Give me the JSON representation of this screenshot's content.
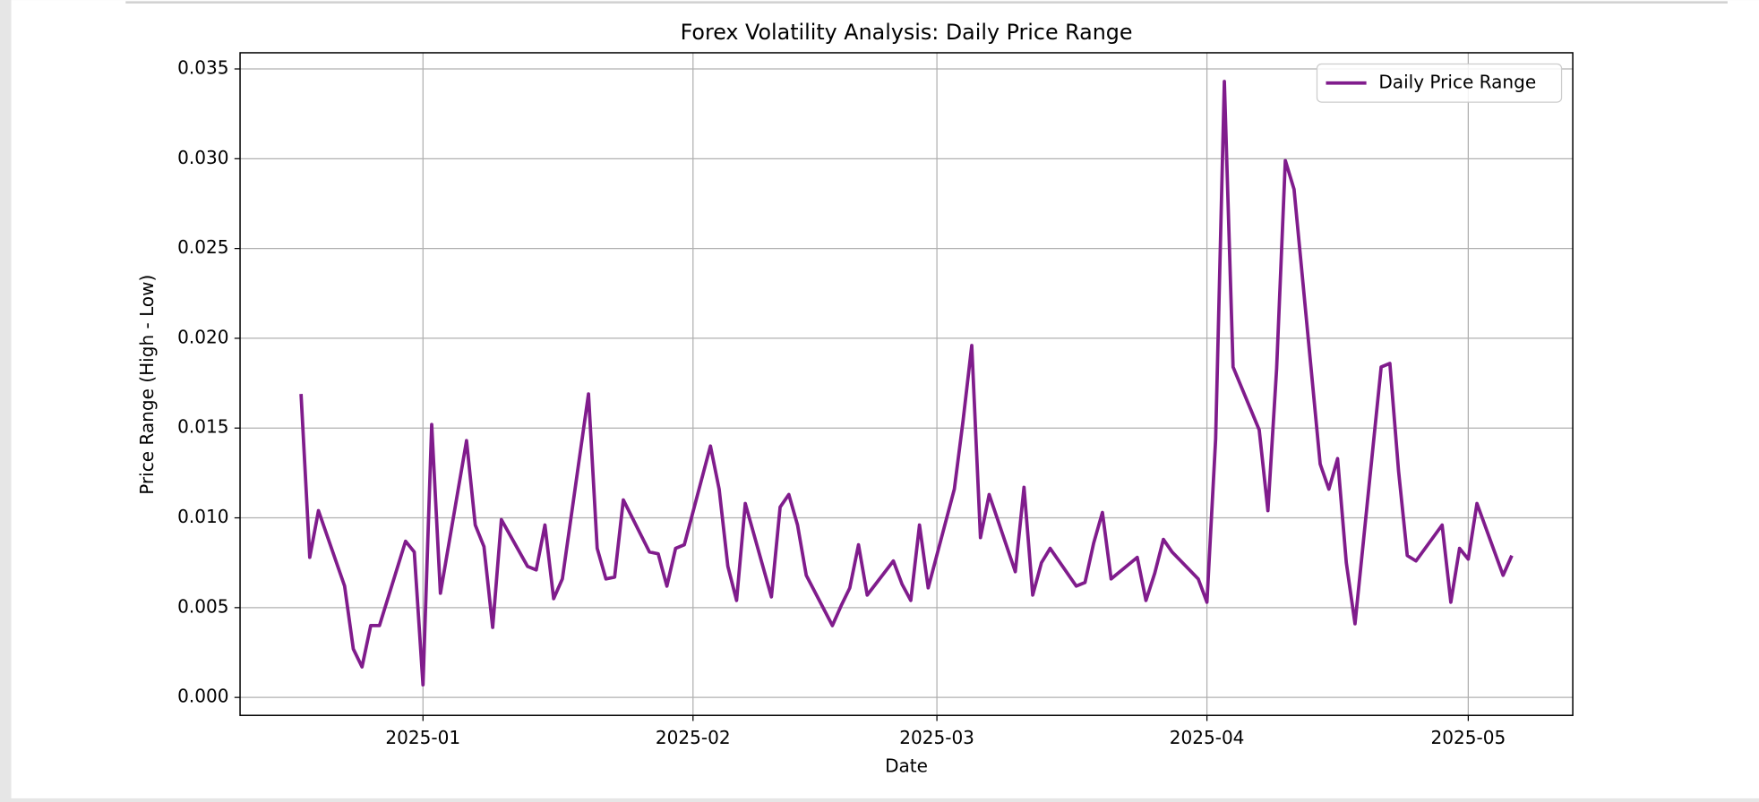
{
  "chart_data": {
    "type": "line",
    "title": "Forex Volatility Analysis: Daily Price Range",
    "x_label": "Date",
    "y_label": "Price Range (High - Low)",
    "x": [
      "2024-12-18",
      "2024-12-19",
      "2024-12-20",
      "2024-12-23",
      "2024-12-24",
      "2024-12-25",
      "2024-12-26",
      "2024-12-27",
      "2024-12-30",
      "2024-12-31",
      "2025-01-01",
      "2025-01-02",
      "2025-01-03",
      "2025-01-06",
      "2025-01-07",
      "2025-01-08",
      "2025-01-09",
      "2025-01-10",
      "2025-01-13",
      "2025-01-14",
      "2025-01-15",
      "2025-01-16",
      "2025-01-17",
      "2025-01-20",
      "2025-01-21",
      "2025-01-22",
      "2025-01-23",
      "2025-01-24",
      "2025-01-27",
      "2025-01-28",
      "2025-01-29",
      "2025-01-30",
      "2025-01-31",
      "2025-02-03",
      "2025-02-04",
      "2025-02-05",
      "2025-02-06",
      "2025-02-07",
      "2025-02-10",
      "2025-02-11",
      "2025-02-12",
      "2025-02-13",
      "2025-02-14",
      "2025-02-17",
      "2025-02-18",
      "2025-02-19",
      "2025-02-20",
      "2025-02-21",
      "2025-02-24",
      "2025-02-25",
      "2025-02-26",
      "2025-02-27",
      "2025-02-28",
      "2025-03-03",
      "2025-03-04",
      "2025-03-05",
      "2025-03-06",
      "2025-03-07",
      "2025-03-10",
      "2025-03-11",
      "2025-03-12",
      "2025-03-13",
      "2025-03-14",
      "2025-03-17",
      "2025-03-18",
      "2025-03-19",
      "2025-03-20",
      "2025-03-21",
      "2025-03-24",
      "2025-03-25",
      "2025-03-26",
      "2025-03-27",
      "2025-03-28",
      "2025-03-31",
      "2025-04-01",
      "2025-04-02",
      "2025-04-03",
      "2025-04-04",
      "2025-04-07",
      "2025-04-08",
      "2025-04-09",
      "2025-04-10",
      "2025-04-11",
      "2025-04-14",
      "2025-04-15",
      "2025-04-16",
      "2025-04-17",
      "2025-04-18",
      "2025-04-21",
      "2025-04-22",
      "2025-04-23",
      "2025-04-24",
      "2025-04-25",
      "2025-04-28",
      "2025-04-29",
      "2025-04-30",
      "2025-05-01",
      "2025-05-02",
      "2025-05-05",
      "2025-05-06"
    ],
    "series": [
      {
        "name": "Daily Price Range",
        "color": "#801c8c",
        "values": [
          0.0169,
          0.0078,
          0.0104,
          0.0062,
          0.0027,
          0.0017,
          0.004,
          0.004,
          0.0087,
          0.0081,
          0.0007,
          0.0152,
          0.0058,
          0.0143,
          0.0096,
          0.0084,
          0.0039,
          0.0099,
          0.0073,
          0.0071,
          0.0096,
          0.0055,
          0.0066,
          0.0169,
          0.0083,
          0.0066,
          0.0067,
          0.011,
          0.0081,
          0.008,
          0.0062,
          0.0083,
          0.0085,
          0.014,
          0.0116,
          0.0073,
          0.0054,
          0.0108,
          0.0056,
          0.0106,
          0.0113,
          0.0096,
          0.0068,
          0.004,
          0.0051,
          0.0061,
          0.0085,
          0.0057,
          0.0076,
          0.0063,
          0.0054,
          0.0096,
          0.0061,
          0.0116,
          0.0154,
          0.0196,
          0.0089,
          0.0113,
          0.007,
          0.0117,
          0.0057,
          0.0075,
          0.0083,
          0.0062,
          0.0064,
          0.0086,
          0.0103,
          0.0066,
          0.0078,
          0.0054,
          0.0069,
          0.0088,
          0.0081,
          0.0066,
          0.0053,
          0.0144,
          0.0343,
          0.0184,
          0.0149,
          0.0104,
          0.0183,
          0.0299,
          0.0283,
          0.013,
          0.0116,
          0.0133,
          0.0075,
          0.0041,
          0.0184,
          0.0186,
          0.0126,
          0.0079,
          0.0076,
          0.0096,
          0.0053,
          0.0083,
          0.0077,
          0.0108,
          0.0068,
          0.0079
        ]
      }
    ],
    "xlim": [
      "2024-12-11",
      "2025-05-13"
    ],
    "xticks": [
      {
        "value": "2025-01-01",
        "label": "2025-01"
      },
      {
        "value": "2025-02-01",
        "label": "2025-02"
      },
      {
        "value": "2025-03-01",
        "label": "2025-03"
      },
      {
        "value": "2025-04-01",
        "label": "2025-04"
      },
      {
        "value": "2025-05-01",
        "label": "2025-05"
      }
    ],
    "ylim": [
      -0.001,
      0.0359
    ],
    "yticks": [
      {
        "value": 0,
        "label": "0.000"
      },
      0.005,
      {
        "value": 0.01,
        "label": "0.010"
      },
      0.015,
      {
        "value": 0.02,
        "label": "0.020"
      },
      0.025,
      {
        "value": 0.03,
        "label": "0.030"
      },
      0.035
    ],
    "grid": true,
    "legend": "upper right"
  }
}
